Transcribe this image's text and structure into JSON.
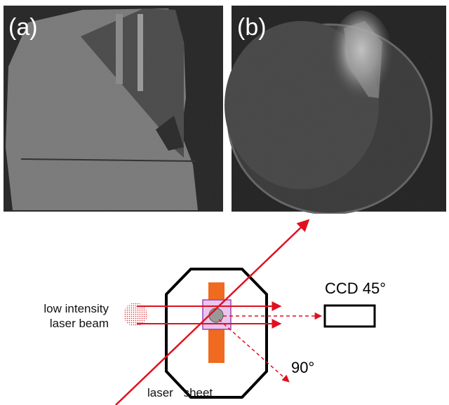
{
  "panels": [
    {
      "label": "(a)"
    },
    {
      "label": "(b)"
    }
  ],
  "diagram": {
    "beam_label": [
      "low intensity",
      "laser beam"
    ],
    "camera_label": "CCD 45°",
    "angle_label": "90°",
    "sheet_label": "laser sheet"
  }
}
